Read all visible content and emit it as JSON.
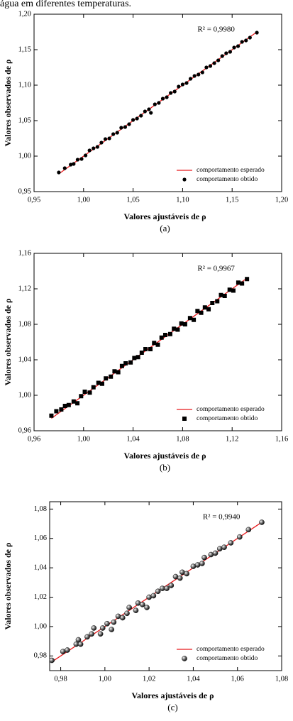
{
  "caption_fragment": "água em diferentes temperaturas.",
  "chart_data": [
    {
      "type": "scatter",
      "marker": "circle",
      "legend": "lower right",
      "x_label": "Valores ajustáveis de ρ",
      "y_label": "Valores observados de ρ",
      "annotation": "R² = 0,9980",
      "caption": "(a)",
      "xlim": [
        0.95,
        1.2
      ],
      "ylim": [
        0.95,
        1.2
      ],
      "xticks": [
        {
          "value": 0.95,
          "label": "0,95"
        },
        {
          "value": 1.0,
          "label": "1,00"
        },
        {
          "value": 1.05,
          "label": "1,05"
        },
        {
          "value": 1.1,
          "label": "1,10"
        },
        {
          "value": 1.15,
          "label": "1,15"
        },
        {
          "value": 1.2,
          "label": "1,20"
        }
      ],
      "yticks": [
        {
          "value": 0.95,
          "label": "0,95"
        },
        {
          "value": 1.0,
          "label": "1,00"
        },
        {
          "value": 1.05,
          "label": "1,05"
        },
        {
          "value": 1.1,
          "label": "1,10"
        },
        {
          "value": 1.15,
          "label": "1,15"
        },
        {
          "value": 1.2,
          "label": "1,20"
        }
      ],
      "series": [
        {
          "name": "comportamento esperado",
          "type": "line",
          "color": "#e8191c",
          "x": [
            0.975,
            1.175
          ],
          "values": [
            0.975,
            1.175
          ]
        },
        {
          "name": "comportamento obtido",
          "type": "scatter",
          "color": "#000000",
          "x": [
            0.975,
            0.981,
            0.987,
            0.99,
            0.994,
            0.998,
            1.002,
            1.006,
            1.01,
            1.014,
            1.018,
            1.022,
            1.026,
            1.03,
            1.034,
            1.038,
            1.042,
            1.046,
            1.05,
            1.054,
            1.058,
            1.062,
            1.066,
            1.068,
            1.072,
            1.076,
            1.08,
            1.084,
            1.088,
            1.092,
            1.096,
            1.1,
            1.104,
            1.108,
            1.112,
            1.116,
            1.12,
            1.124,
            1.128,
            1.132,
            1.136,
            1.14,
            1.144,
            1.148,
            1.152,
            1.156,
            1.16,
            1.164,
            1.168,
            1.175
          ],
          "values": [
            0.977,
            0.983,
            0.988,
            0.989,
            0.995,
            0.996,
            1.001,
            1.008,
            1.011,
            1.013,
            1.019,
            1.024,
            1.025,
            1.031,
            1.033,
            1.04,
            1.041,
            1.045,
            1.051,
            1.053,
            1.057,
            1.063,
            1.066,
            1.061,
            1.073,
            1.075,
            1.081,
            1.083,
            1.089,
            1.091,
            1.098,
            1.101,
            1.103,
            1.109,
            1.113,
            1.115,
            1.118,
            1.125,
            1.127,
            1.131,
            1.135,
            1.141,
            1.145,
            1.147,
            1.153,
            1.155,
            1.161,
            1.163,
            1.167,
            1.174
          ]
        }
      ]
    },
    {
      "type": "scatter",
      "marker": "square",
      "legend": "lower right",
      "x_label": "Valores ajustáveis de ρ",
      "y_label": "Valores observados de ρ",
      "annotation": "R² = 0,9967",
      "caption": "(b)",
      "xlim": [
        0.96,
        1.16
      ],
      "ylim": [
        0.96,
        1.16
      ],
      "xticks": [
        {
          "value": 0.96,
          "label": "0,96"
        },
        {
          "value": 1.0,
          "label": "1,00"
        },
        {
          "value": 1.04,
          "label": "1,04"
        },
        {
          "value": 1.08,
          "label": "1,08"
        },
        {
          "value": 1.12,
          "label": "1,12"
        },
        {
          "value": 1.16,
          "label": "1,16"
        }
      ],
      "yticks": [
        {
          "value": 0.96,
          "label": "0,96"
        },
        {
          "value": 1.0,
          "label": "1,00"
        },
        {
          "value": 1.04,
          "label": "1,04"
        },
        {
          "value": 1.08,
          "label": "1,08"
        },
        {
          "value": 1.12,
          "label": "1,12"
        },
        {
          "value": 1.16,
          "label": "1,16"
        }
      ],
      "series": [
        {
          "name": "comportamento esperado",
          "type": "line",
          "color": "#e8191c",
          "x": [
            0.974,
            1.132
          ],
          "values": [
            0.974,
            1.132
          ]
        },
        {
          "name": "comportamento obtido",
          "type": "scatter",
          "color": "#000000",
          "x": [
            0.974,
            0.978,
            0.982,
            0.985,
            0.988,
            0.992,
            0.995,
            0.998,
            1.001,
            1.005,
            1.008,
            1.012,
            1.015,
            1.018,
            1.022,
            1.025,
            1.028,
            1.031,
            1.034,
            1.038,
            1.041,
            1.044,
            1.047,
            1.05,
            1.054,
            1.057,
            1.06,
            1.063,
            1.066,
            1.07,
            1.073,
            1.076,
            1.079,
            1.082,
            1.086,
            1.089,
            1.092,
            1.095,
            1.098,
            1.101,
            1.104,
            1.108,
            1.111,
            1.114,
            1.118,
            1.121,
            1.125,
            1.128,
            1.132
          ],
          "values": [
            0.977,
            0.982,
            0.984,
            0.988,
            0.989,
            0.993,
            0.991,
            0.999,
            1.004,
            1.003,
            1.009,
            1.014,
            1.013,
            1.019,
            1.021,
            1.027,
            1.026,
            1.033,
            1.036,
            1.037,
            1.042,
            1.043,
            1.048,
            1.052,
            1.052,
            1.059,
            1.057,
            1.065,
            1.068,
            1.069,
            1.075,
            1.074,
            1.081,
            1.08,
            1.087,
            1.085,
            1.095,
            1.093,
            1.099,
            1.097,
            1.104,
            1.106,
            1.113,
            1.112,
            1.119,
            1.118,
            1.127,
            1.126,
            1.131
          ]
        }
      ]
    },
    {
      "type": "scatter",
      "marker": "sphere",
      "legend": "lower right",
      "x_label": "Valores ajustáveis de ρ",
      "y_label": "Valores observados de ρ",
      "annotation": "R² = 0,9940",
      "caption": "(c)",
      "xlim": [
        0.975,
        1.08
      ],
      "ylim": [
        0.97,
        1.085
      ],
      "xticks": [
        {
          "value": 0.98,
          "label": "0,98"
        },
        {
          "value": 1.0,
          "label": "1,00"
        },
        {
          "value": 1.02,
          "label": "1,02"
        },
        {
          "value": 1.04,
          "label": "1,04"
        },
        {
          "value": 1.06,
          "label": "1,06"
        },
        {
          "value": 1.08,
          "label": "1,08"
        }
      ],
      "yticks": [
        {
          "value": 0.98,
          "label": "0,98"
        },
        {
          "value": 1.0,
          "label": "1,00"
        },
        {
          "value": 1.02,
          "label": "1,02"
        },
        {
          "value": 1.04,
          "label": "1,04"
        },
        {
          "value": 1.06,
          "label": "1,06"
        },
        {
          "value": 1.08,
          "label": "1,08"
        }
      ],
      "series": [
        {
          "name": "comportamento esperado",
          "type": "line",
          "color": "#e8191c",
          "x": [
            0.976,
            1.071
          ],
          "values": [
            0.976,
            1.071
          ]
        },
        {
          "name": "comportamento obtido",
          "type": "scatter",
          "color": "#000000",
          "x": [
            0.976,
            0.981,
            0.983,
            0.987,
            0.988,
            0.989,
            0.992,
            0.994,
            0.995,
            0.998,
            0.999,
            1.001,
            1.003,
            1.004,
            1.006,
            1.008,
            1.01,
            1.011,
            1.014,
            1.015,
            1.017,
            1.019,
            1.02,
            1.022,
            1.024,
            1.026,
            1.028,
            1.03,
            1.032,
            1.034,
            1.035,
            1.037,
            1.04,
            1.042,
            1.044,
            1.045,
            1.048,
            1.05,
            1.052,
            1.054,
            1.057,
            1.061,
            1.065,
            1.071
          ],
          "values": [
            0.977,
            0.983,
            0.984,
            0.988,
            0.991,
            0.988,
            0.993,
            0.995,
            0.999,
            0.995,
            0.999,
            1.002,
            0.998,
            1.003,
            1.007,
            1.006,
            1.009,
            1.013,
            1.011,
            1.016,
            1.015,
            1.013,
            1.02,
            1.021,
            1.024,
            1.026,
            1.026,
            1.028,
            1.034,
            1.033,
            1.037,
            1.036,
            1.041,
            1.042,
            1.043,
            1.047,
            1.049,
            1.05,
            1.053,
            1.054,
            1.057,
            1.061,
            1.066,
            1.071
          ]
        }
      ]
    }
  ]
}
